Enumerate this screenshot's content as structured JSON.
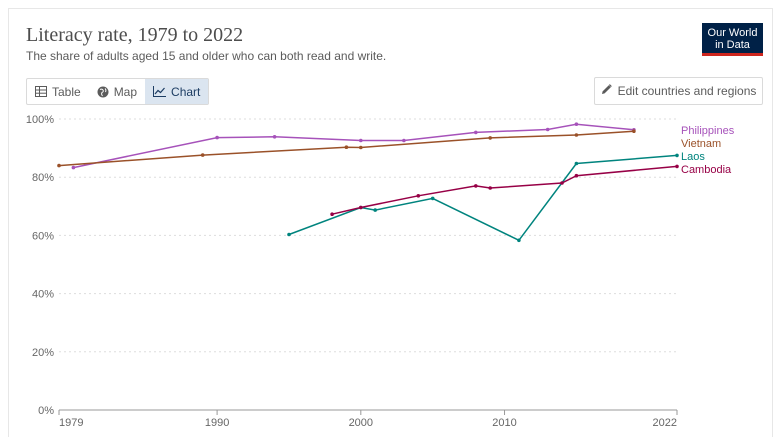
{
  "header": {
    "title": "Literacy rate, 1979 to 2022",
    "subtitle": "The share of adults aged 15 and older who can both read and write.",
    "logo_line1": "Our World",
    "logo_line2": "in Data"
  },
  "tabs": [
    {
      "label": "Table",
      "icon": "table-icon",
      "active": false
    },
    {
      "label": "Map",
      "icon": "globe-icon",
      "active": false
    },
    {
      "label": "Chart",
      "icon": "line-chart-icon",
      "active": true
    }
  ],
  "edit_button": {
    "label": "Edit countries and regions",
    "icon": "pencil-icon"
  },
  "chart_data": {
    "type": "line",
    "title": "Literacy rate, 1979 to 2022",
    "xlabel": "",
    "ylabel": "",
    "xlim": [
      1979,
      2022
    ],
    "ylim": [
      0,
      100
    ],
    "x_ticks": [
      1979,
      1990,
      2000,
      2010,
      2022
    ],
    "y_ticks": [
      0,
      20,
      40,
      60,
      80,
      100
    ],
    "y_tick_labels": [
      "0%",
      "20%",
      "40%",
      "60%",
      "80%",
      "100%"
    ],
    "grid": "horizontal dotted",
    "legend": "inline-right",
    "series": [
      {
        "name": "Philippines",
        "color": "#a652ba",
        "points": [
          [
            1980,
            83.3
          ],
          [
            1990,
            93.6
          ],
          [
            1994,
            93.9
          ],
          [
            2000,
            92.6
          ],
          [
            2003,
            92.6
          ],
          [
            2008,
            95.4
          ],
          [
            2013,
            96.4
          ],
          [
            2015,
            98.2
          ],
          [
            2019,
            96.3
          ]
        ]
      },
      {
        "name": "Vietnam",
        "color": "#9a5129",
        "points": [
          [
            1979,
            84
          ],
          [
            1989,
            87.6
          ],
          [
            1999,
            90.3
          ],
          [
            2000,
            90.2
          ],
          [
            2009,
            93.5
          ],
          [
            2015,
            94.5
          ],
          [
            2019,
            95.8
          ]
        ]
      },
      {
        "name": "Laos",
        "color": "#00847e",
        "points": [
          [
            1995,
            60.3
          ],
          [
            2000,
            69.6
          ],
          [
            2001,
            68.7
          ],
          [
            2005,
            72.7
          ],
          [
            2011,
            58.3
          ],
          [
            2015,
            84.7
          ],
          [
            2022,
            87.5
          ]
        ]
      },
      {
        "name": "Cambodia",
        "color": "#970046",
        "points": [
          [
            1998,
            67.3
          ],
          [
            2000,
            69.6
          ],
          [
            2004,
            73.6
          ],
          [
            2008,
            77
          ],
          [
            2009,
            76.3
          ],
          [
            2014,
            78
          ],
          [
            2015,
            80.5
          ],
          [
            2022,
            83.7
          ]
        ]
      }
    ]
  }
}
